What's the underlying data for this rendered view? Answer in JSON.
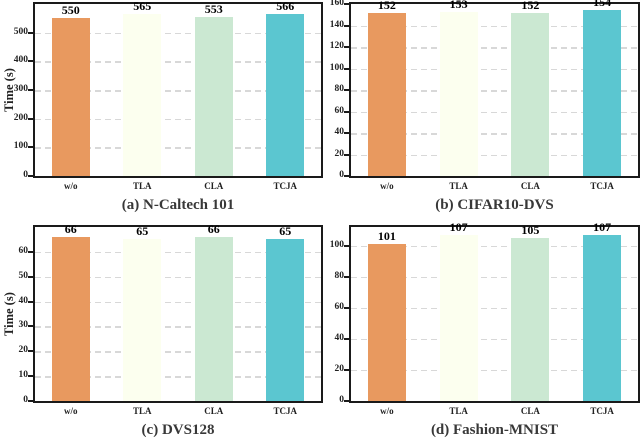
{
  "figure": {
    "categories": [
      "w/o",
      "TLA",
      "CLA",
      "TCJA"
    ],
    "bar_colors": [
      "#E8995F",
      "#FCFFEF",
      "#CBE8D2",
      "#5BC6D0"
    ],
    "grid_color": "#D8D8D8",
    "spine_color": "#1A1A1A",
    "y_axis_label": "Time (s)"
  },
  "chart_data": [
    {
      "type": "bar",
      "title": "(a) N-Caltech 101",
      "ylabel": "Time (s)",
      "categories": [
        "w/o",
        "TLA",
        "CLA",
        "TCJA"
      ],
      "values": [
        550,
        565,
        553,
        566
      ],
      "bar_labels": [
        "550",
        "565",
        "553",
        "566"
      ],
      "yticks": [
        0,
        100,
        200,
        300,
        400,
        500
      ],
      "ylim": [
        0,
        600
      ],
      "grid": true,
      "legend_position": "none"
    },
    {
      "type": "bar",
      "title": "(b) CIFAR10-DVS",
      "ylabel": "",
      "categories": [
        "w/o",
        "TLA",
        "CLA",
        "TCJA"
      ],
      "values": [
        152,
        153,
        152,
        154
      ],
      "bar_labels": [
        "152",
        "153",
        "152",
        "154"
      ],
      "yticks": [
        0,
        20,
        40,
        60,
        80,
        100,
        120,
        140,
        160
      ],
      "ylim": [
        0,
        160
      ],
      "grid": true,
      "legend_position": "none"
    },
    {
      "type": "bar",
      "title": "(c) DVS128",
      "ylabel": "Time (s)",
      "categories": [
        "w/o",
        "TLA",
        "CLA",
        "TCJA"
      ],
      "values": [
        66,
        65,
        66,
        65
      ],
      "bar_labels": [
        "66",
        "65",
        "66",
        "65"
      ],
      "yticks": [
        0,
        10,
        20,
        30,
        40,
        50,
        60
      ],
      "ylim": [
        0,
        70
      ],
      "grid": true,
      "legend_position": "none"
    },
    {
      "type": "bar",
      "title": "(d) Fashion-MNIST",
      "ylabel": "",
      "categories": [
        "w/o",
        "TLA",
        "CLA",
        "TCJA"
      ],
      "values": [
        101,
        107,
        105,
        107
      ],
      "bar_labels": [
        "101",
        "107",
        "105",
        "107"
      ],
      "yticks": [
        0,
        20,
        40,
        60,
        80,
        100
      ],
      "ylim": [
        0,
        112
      ],
      "grid": true,
      "legend_position": "none"
    }
  ]
}
